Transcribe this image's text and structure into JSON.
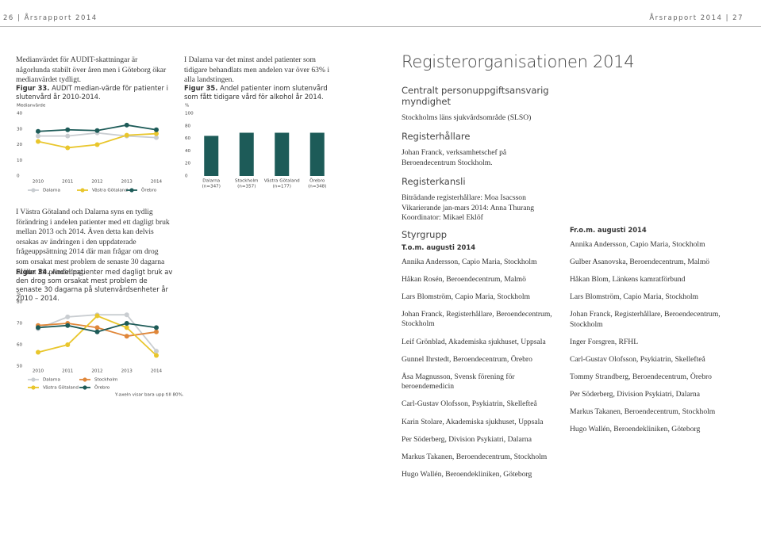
{
  "header": {
    "left": "26 | Årsrapport 2014",
    "right": "Årsrapport 2014 | 27"
  },
  "left": {
    "intro": "Medianvärdet för AUDIT-skattningar är någorlunda stabilt över åren men i Göteborg ökar medianvärdet tydligt.",
    "paragraph": "I Västra Götaland och Dalarna syns en tydlig förändring i andelen patienter med ett dagligt bruk mellan 2013 och 2014. Även detta kan delvis orsakas av ändringen i den uppdaterade frågeuppsättning 2014 där man frågar om drog som orsakat mest problem de senaste 30 dagarna istället för primärdrog."
  },
  "middle": {
    "intro": "I Dalarna var det minst andel patienter som tidigare behandlats men andelen var över 63% i alla landstingen."
  },
  "chart_data": [
    {
      "type": "line",
      "figure_label": "Figur 33.",
      "title": "AUDIT median-värde för patienter i slutenvård år 2010-2014.",
      "ylabel": "Medianvärde",
      "categories": [
        "2010",
        "2011",
        "2012",
        "2013",
        "2014"
      ],
      "series": [
        {
          "name": "Dalarna",
          "color": "#c9cdd1",
          "values": [
            25.5,
            25.5,
            27.5,
            25.5,
            24.5
          ]
        },
        {
          "name": "Västra Götaland",
          "color": "#e9c62c",
          "values": [
            22,
            18,
            20,
            26,
            27
          ]
        },
        {
          "name": "Örebro",
          "color": "#1d5b58",
          "values": [
            28.5,
            29.5,
            29,
            32.5,
            29.5
          ]
        }
      ],
      "ylim": [
        0,
        40
      ],
      "yticks": [
        0,
        10,
        20,
        30,
        40
      ]
    },
    {
      "type": "line",
      "figure_label": "Figur 34.",
      "title": "Andel patienter med dagligt bruk av den drog som orsakat mest problem de senaste 30 dagarna på slutenvårdsenheter år 2010 – 2014.",
      "ylabel": "%",
      "note": "Y-axeln visar bara upp till 80%.",
      "categories": [
        "2010",
        "2011",
        "2012",
        "2013",
        "2014"
      ],
      "series": [
        {
          "name": "Dalarna",
          "color": "#c9cdd1",
          "values": [
            67.5,
            73,
            74,
            74,
            57
          ]
        },
        {
          "name": "Stockholm",
          "color": "#e0873a",
          "values": [
            69,
            70,
            68,
            64,
            66
          ]
        },
        {
          "name": "Västra Götaland",
          "color": "#e9c62c",
          "values": [
            56.5,
            60,
            73.5,
            68,
            55
          ]
        },
        {
          "name": "Örebro",
          "color": "#1d5b58",
          "values": [
            68,
            69,
            66,
            70,
            68
          ]
        }
      ],
      "ylim": [
        50,
        80
      ],
      "yticks": [
        50,
        60,
        70,
        80
      ]
    },
    {
      "type": "bar",
      "figure_label": "Figur 35.",
      "title": "Andel patienter inom slutenvård som fått tidigare vård för alkohol år 2014.",
      "ylabel": "%",
      "categories": [
        "Dalarna",
        "Stockholm",
        "Västra Götaland",
        "Örebro"
      ],
      "category_notes": [
        "(n=347)",
        "(n=357)",
        "(n=177)",
        "(n=348)"
      ],
      "values": [
        64,
        69,
        69,
        69
      ],
      "color": "#1d5b58",
      "ylim": [
        0,
        100
      ],
      "yticks": [
        0,
        20,
        40,
        60,
        80,
        100
      ]
    }
  ],
  "org": {
    "title": "Registerorganisationen 2014",
    "sections": [
      {
        "heading": "Centralt personuppgiftsansvarig myndighet",
        "lines": [
          "Stockholms läns sjukvårdsområde (SLSO)"
        ]
      },
      {
        "heading": "Registerhållare",
        "lines": [
          "Johan Franck, verksamhetschef på Beroendecentrum Stockholm."
        ]
      },
      {
        "heading": "Registerkansli",
        "lines": [
          "Biträdande registerhållare: Moa Isacsson",
          "Vikarierande jan-mars 2014: Anna Thurang",
          "Koordinator: Mikael Eklöf"
        ]
      }
    ],
    "styrgrupp": {
      "heading": "Styrgrupp",
      "columns": [
        {
          "period": "T.o.m. augusti 2014",
          "members": [
            "Annika Andersson, Capio Maria, Stockholm",
            "Håkan Rosén, Beroendecentrum, Malmö",
            "Lars Blomström, Capio Maria, Stockholm",
            "Johan Franck, Registerhållare, Beroendecentrum, Stockholm",
            "Leif Grönblad, Akademiska sjukhuset, Uppsala",
            "Gunnel Ihrstedt, Beroendecentrum, Örebro",
            "Åsa Magnusson, Svensk förening för beroendemedicin",
            "Carl-Gustav Olofsson, Psykiatrin, Skellefteå",
            "Karin Stolare, Akademiska sjukhuset, Uppsala",
            "Per Söderberg, Division Psykiatri, Dalarna",
            "Markus Takanen, Beroendecentrum, Stockholm",
            "Hugo Wallén, Beroendekliniken, Göteborg"
          ]
        },
        {
          "period": "Fr.o.m. augusti 2014",
          "members": [
            "Annika Andersson, Capio Maria, Stockholm",
            "Gulber Asanovska, Beroendecentrum, Malmö",
            "Håkan Blom, Länkens kamratförbund",
            "Lars Blomström, Capio Maria, Stockholm",
            "Johan Franck, Registerhållare, Beroendecentrum, Stockholm",
            "Inger Forsgren, RFHL",
            "Carl-Gustav Olofsson, Psykiatrin, Skellefteå",
            "Tommy Strandberg, Beroendecentrum, Örebro",
            "Per Söderberg, Division Psykiatri, Dalarna",
            "Markus Takanen, Beroendecentrum, Stockholm",
            "Hugo Wallén, Beroendekliniken, Göteborg"
          ]
        }
      ]
    }
  }
}
